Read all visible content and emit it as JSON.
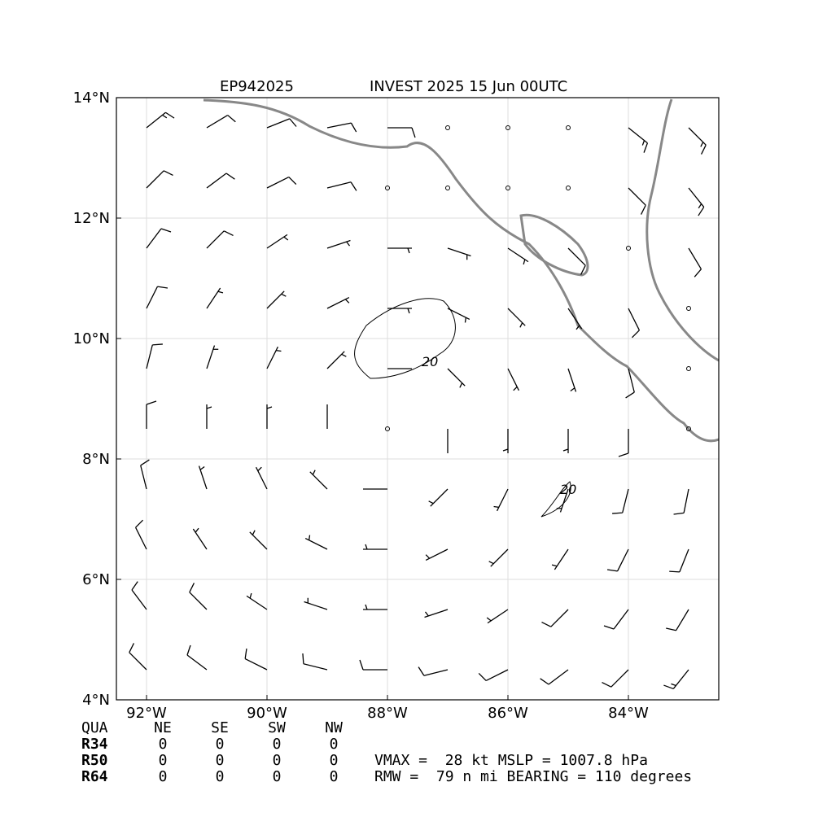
{
  "header": {
    "left_title": "EP942025",
    "right_title": "INVEST 2025 15 Jun 00UTC"
  },
  "map": {
    "xlim": [
      -92.5,
      -82.5
    ],
    "ylim": [
      4,
      14
    ],
    "xticks": [
      {
        "value": -92,
        "label": "92°W"
      },
      {
        "value": -90,
        "label": "90°W"
      },
      {
        "value": -88,
        "label": "88°W"
      },
      {
        "value": -86,
        "label": "86°W"
      },
      {
        "value": -84,
        "label": "84°W"
      }
    ],
    "yticks": [
      {
        "value": 4,
        "label": "4°N"
      },
      {
        "value": 6,
        "label": "6°N"
      },
      {
        "value": 8,
        "label": "8°N"
      },
      {
        "value": 10,
        "label": "10°N"
      },
      {
        "value": 12,
        "label": "12°N"
      },
      {
        "value": 14,
        "label": "14°N"
      }
    ],
    "grid": true,
    "barb_color": "#000000",
    "contour_level": 20,
    "wind": {
      "lon": [
        -92,
        -91,
        -90,
        -89,
        -88,
        -87,
        -86,
        -85,
        -84,
        -83
      ],
      "lat": [
        13.5,
        12.5,
        11.5,
        10.5,
        9.5,
        8.5,
        7.5,
        6.5,
        5.5,
        4.5
      ],
      "u": [
        [
          -10,
          -10,
          -10,
          -10,
          -10,
          0,
          0,
          0,
          -10,
          -10
        ],
        [
          -8,
          -8,
          -8,
          -8,
          0,
          0,
          0,
          0,
          -8,
          -8
        ],
        [
          -6,
          -6,
          -6,
          -6,
          -6,
          -6,
          -6,
          -6,
          0,
          -6
        ],
        [
          -4,
          -4,
          -4,
          -4,
          -4,
          -4,
          -4,
          -4,
          -4,
          0
        ],
        [
          -2,
          -2,
          -2,
          -2,
          -2,
          -2,
          -2,
          -2,
          -2,
          0
        ],
        [
          0,
          0,
          0,
          0,
          0,
          0,
          0,
          0,
          0,
          0
        ],
        [
          2,
          2,
          2,
          2,
          2,
          2,
          2,
          2,
          2,
          2
        ],
        [
          4,
          4,
          4,
          4,
          4,
          4,
          4,
          4,
          4,
          4
        ],
        [
          6,
          6,
          6,
          6,
          6,
          6,
          6,
          6,
          6,
          6
        ],
        [
          8,
          8,
          8,
          8,
          8,
          8,
          8,
          8,
          8,
          8
        ]
      ],
      "v": [
        [
          -8,
          -6,
          -4,
          -2,
          0,
          0,
          0,
          0,
          8,
          10
        ],
        [
          -8,
          -6,
          -4,
          -2,
          0,
          0,
          0,
          0,
          8,
          10
        ],
        [
          -8,
          -6,
          -4,
          -2,
          0,
          2,
          4,
          6,
          0,
          10
        ],
        [
          -8,
          -6,
          -4,
          -2,
          0,
          2,
          4,
          6,
          8,
          0
        ],
        [
          -8,
          -6,
          -4,
          -2,
          0,
          2,
          4,
          6,
          8,
          0
        ],
        [
          -8,
          -6,
          -4,
          -2,
          0,
          2,
          4,
          6,
          8,
          0
        ],
        [
          -8,
          -6,
          -4,
          -2,
          0,
          2,
          4,
          6,
          8,
          10
        ],
        [
          -8,
          -6,
          -4,
          -2,
          0,
          2,
          4,
          6,
          8,
          10
        ],
        [
          -8,
          -6,
          -4,
          -2,
          0,
          2,
          4,
          6,
          8,
          10
        ],
        [
          -8,
          -6,
          -4,
          -2,
          0,
          2,
          4,
          6,
          8,
          10
        ]
      ]
    }
  },
  "table": {
    "header": [
      "QUA",
      "NE",
      "SE",
      "SW",
      "NW"
    ],
    "rows": [
      [
        "R34",
        0,
        0,
        0,
        0
      ],
      [
        "R50",
        0,
        0,
        0,
        0
      ],
      [
        "R64",
        0,
        0,
        0,
        0
      ]
    ]
  },
  "summary": [
    "VMAX =  28 kt MSLP = 1007.8 hPa",
    "RMW =  79 n mi BEARING = 110 degrees"
  ]
}
